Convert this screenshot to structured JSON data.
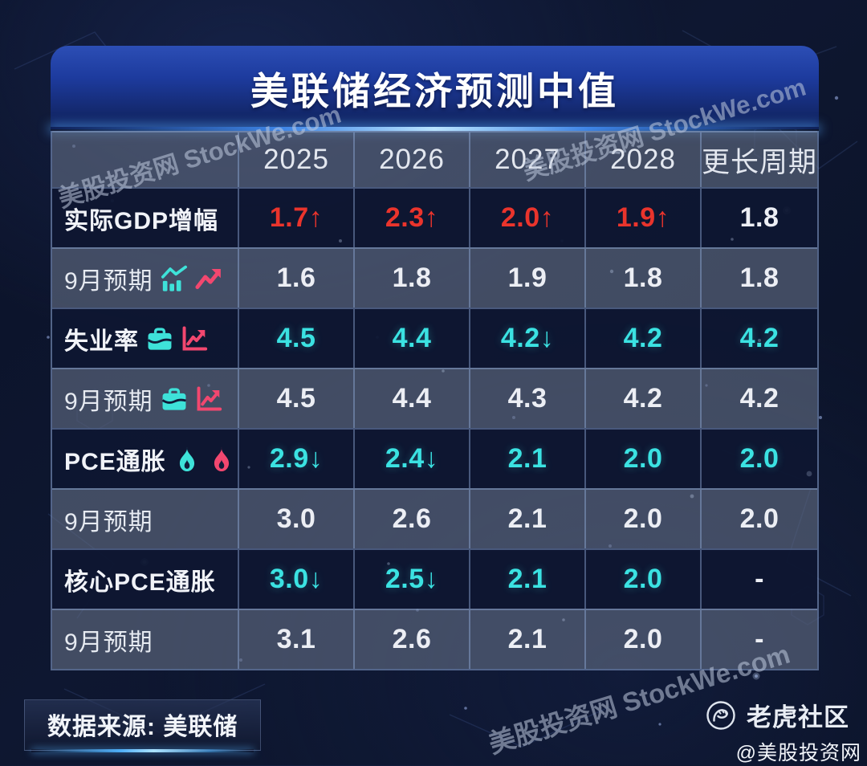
{
  "page": {
    "title": "美联储经济预测中值"
  },
  "watermark": {
    "text": "美股投资网 StockWe.com"
  },
  "colors": {
    "red": "#ea342c",
    "cyan": "#3be2e2",
    "white": "#eceef4",
    "accent_cyan": "#3ee2d9",
    "accent_pink": "#f2476f"
  },
  "table": {
    "header": [
      "",
      "2025",
      "2026",
      "2027",
      "2028",
      "更长周期"
    ],
    "rows": [
      {
        "label": "实际GDP增幅",
        "tone": "dark",
        "icons": [],
        "values": [
          {
            "text": "1.7",
            "arrow": "↑",
            "color": "red"
          },
          {
            "text": "2.3",
            "arrow": "↑",
            "color": "red"
          },
          {
            "text": "2.0",
            "arrow": "↑",
            "color": "red"
          },
          {
            "text": "1.9",
            "arrow": "↑",
            "color": "red"
          },
          {
            "text": "1.8",
            "arrow": "",
            "color": "white"
          }
        ]
      },
      {
        "label": "9月预期",
        "tone": "light",
        "icons": [
          {
            "name": "bar-chart-trend-icon",
            "color": "#3ee2d9"
          },
          {
            "name": "trend-up-arrow-icon",
            "color": "#f2476f"
          }
        ],
        "values": [
          {
            "text": "1.6",
            "arrow": "",
            "color": "white"
          },
          {
            "text": "1.8",
            "arrow": "",
            "color": "white"
          },
          {
            "text": "1.9",
            "arrow": "",
            "color": "white"
          },
          {
            "text": "1.8",
            "arrow": "",
            "color": "white"
          },
          {
            "text": "1.8",
            "arrow": "",
            "color": "white"
          }
        ]
      },
      {
        "label": "失业率",
        "tone": "dark",
        "icons": [
          {
            "name": "briefcase-icon",
            "color": "#3ee2d9"
          },
          {
            "name": "line-chart-icon",
            "color": "#f2476f"
          }
        ],
        "values": [
          {
            "text": "4.5",
            "arrow": "",
            "color": "cyan"
          },
          {
            "text": "4.4",
            "arrow": "",
            "color": "cyan"
          },
          {
            "text": "4.2",
            "arrow": "↓",
            "color": "cyan"
          },
          {
            "text": "4.2",
            "arrow": "",
            "color": "cyan"
          },
          {
            "text": "4.2",
            "arrow": "",
            "color": "cyan"
          }
        ]
      },
      {
        "label": "9月预期",
        "tone": "light",
        "icons": [
          {
            "name": "briefcase-icon",
            "color": "#3ee2d9"
          },
          {
            "name": "line-chart-icon",
            "color": "#f2476f"
          }
        ],
        "values": [
          {
            "text": "4.5",
            "arrow": "",
            "color": "white"
          },
          {
            "text": "4.4",
            "arrow": "",
            "color": "white"
          },
          {
            "text": "4.3",
            "arrow": "",
            "color": "white"
          },
          {
            "text": "4.2",
            "arrow": "",
            "color": "white"
          },
          {
            "text": "4.2",
            "arrow": "",
            "color": "white"
          }
        ]
      },
      {
        "label": "PCE通胀",
        "tone": "dark",
        "icons": [
          {
            "name": "flame-icon",
            "color": "#3ee2d9"
          },
          {
            "name": "flame-icon",
            "color": "#f2476f"
          }
        ],
        "values": [
          {
            "text": "2.9",
            "arrow": "↓",
            "color": "cyan"
          },
          {
            "text": "2.4",
            "arrow": "↓",
            "color": "cyan"
          },
          {
            "text": "2.1",
            "arrow": "",
            "color": "cyan"
          },
          {
            "text": "2.0",
            "arrow": "",
            "color": "cyan"
          },
          {
            "text": "2.0",
            "arrow": "",
            "color": "cyan"
          }
        ]
      },
      {
        "label": "9月预期",
        "tone": "light",
        "icons": [],
        "values": [
          {
            "text": "3.0",
            "arrow": "",
            "color": "white"
          },
          {
            "text": "2.6",
            "arrow": "",
            "color": "white"
          },
          {
            "text": "2.1",
            "arrow": "",
            "color": "white"
          },
          {
            "text": "2.0",
            "arrow": "",
            "color": "white"
          },
          {
            "text": "2.0",
            "arrow": "",
            "color": "white"
          }
        ]
      },
      {
        "label": "核心PCE通胀",
        "tone": "dark",
        "icons": [],
        "values": [
          {
            "text": "3.0",
            "arrow": "↓",
            "color": "cyan"
          },
          {
            "text": "2.5",
            "arrow": "↓",
            "color": "cyan"
          },
          {
            "text": "2.1",
            "arrow": "",
            "color": "cyan"
          },
          {
            "text": "2.0",
            "arrow": "",
            "color": "cyan"
          },
          {
            "text": "-",
            "arrow": "",
            "color": "white"
          }
        ]
      },
      {
        "label": "9月预期",
        "tone": "light",
        "icons": [],
        "values": [
          {
            "text": "3.1",
            "arrow": "",
            "color": "white"
          },
          {
            "text": "2.6",
            "arrow": "",
            "color": "white"
          },
          {
            "text": "2.1",
            "arrow": "",
            "color": "white"
          },
          {
            "text": "2.0",
            "arrow": "",
            "color": "white"
          },
          {
            "text": "-",
            "arrow": "",
            "color": "white"
          }
        ]
      }
    ]
  },
  "footer": {
    "source": "数据来源: 美联储",
    "brand": "老虎社区",
    "handle": "@美股投资网"
  },
  "chart_data": {
    "type": "table",
    "title": "美联储经济预测中值",
    "columns": [
      "2025",
      "2026",
      "2027",
      "2028",
      "更长周期"
    ],
    "rows": [
      {
        "label": "实际GDP增幅",
        "values": [
          "1.7↑",
          "2.3↑",
          "2.0↑",
          "1.9↑",
          "1.8"
        ]
      },
      {
        "label": "9月预期",
        "values": [
          "1.6",
          "1.8",
          "1.9",
          "1.8",
          "1.8"
        ]
      },
      {
        "label": "失业率",
        "values": [
          "4.5",
          "4.4",
          "4.2↓",
          "4.2",
          "4.2"
        ]
      },
      {
        "label": "9月预期",
        "values": [
          "4.5",
          "4.4",
          "4.3",
          "4.2",
          "4.2"
        ]
      },
      {
        "label": "PCE通胀",
        "values": [
          "2.9↓",
          "2.4↓",
          "2.1",
          "2.0",
          "2.0"
        ]
      },
      {
        "label": "9月预期",
        "values": [
          "3.0",
          "2.6",
          "2.1",
          "2.0",
          "2.0"
        ]
      },
      {
        "label": "核心PCE通胀",
        "values": [
          "3.0↓",
          "2.5↓",
          "2.1",
          "2.0",
          "-"
        ]
      },
      {
        "label": "9月预期",
        "values": [
          "3.1",
          "2.6",
          "2.1",
          "2.0",
          "-"
        ]
      }
    ],
    "source": "数据来源: 美联储"
  }
}
